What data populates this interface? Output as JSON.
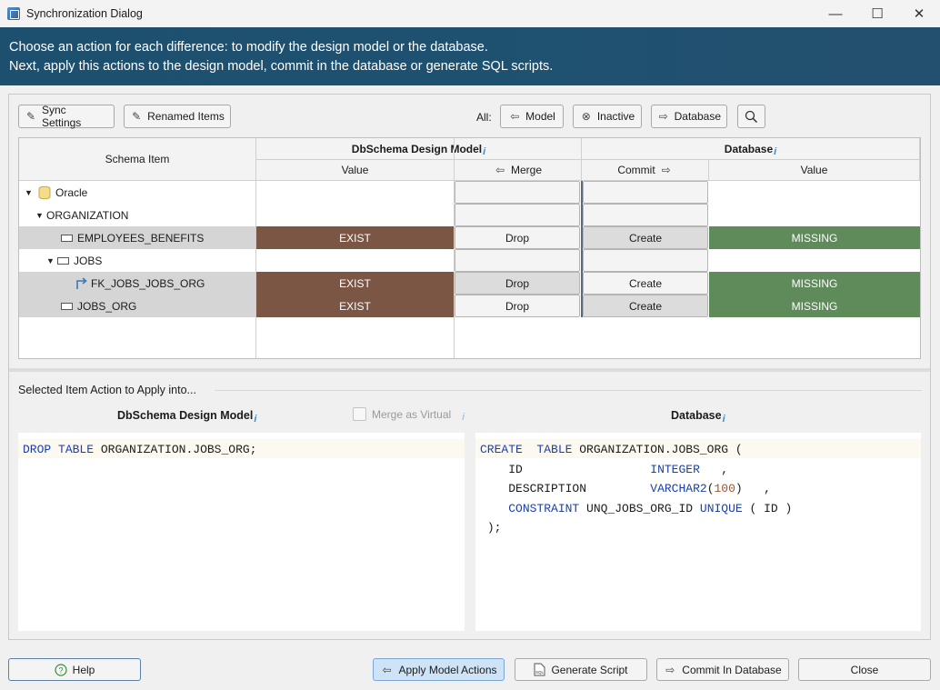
{
  "window": {
    "title": "Synchronization Dialog",
    "minimize_glyph": "—",
    "maximize_glyph": "☐",
    "close_glyph": "✕"
  },
  "banner": {
    "line1": "Choose an action for each difference: to modify the design model or the database.",
    "line2": "Next, apply this actions to the design model, commit in the database or generate SQL scripts."
  },
  "toolbar": {
    "sync_settings": "Sync Settings",
    "renamed_items": "Renamed Items",
    "all_label": "All:",
    "model": "Model",
    "inactive": "Inactive",
    "database": "Database"
  },
  "grid": {
    "headers": {
      "schema_item": "Schema Item",
      "design_model": "DbSchema Design Model",
      "database": "Database",
      "value_left": "Value",
      "merge": "Merge",
      "commit": "Commit",
      "value_right": "Value"
    },
    "rows": [
      {
        "name": "Oracle",
        "left_value": "",
        "merge": "",
        "commit": "",
        "right_value": ""
      },
      {
        "name": "ORGANIZATION",
        "left_value": "",
        "merge": "",
        "commit": "",
        "right_value": ""
      },
      {
        "name": "EMPLOYEES_BENEFITS",
        "left_value": "EXIST",
        "merge": "Drop",
        "commit": "Create",
        "right_value": "MISSING"
      },
      {
        "name": "JOBS",
        "left_value": "",
        "merge": "",
        "commit": "",
        "right_value": ""
      },
      {
        "name": "FK_JOBS_JOBS_ORG",
        "left_value": "EXIST",
        "merge": "Drop",
        "commit": "Create",
        "right_value": "MISSING"
      },
      {
        "name": "JOBS_ORG",
        "left_value": "EXIST",
        "merge": "Drop",
        "commit": "Create",
        "right_value": "MISSING"
      }
    ]
  },
  "details": {
    "title": "Selected Item Action to Apply into...",
    "left_header": "DbSchema Design Model",
    "merge_virtual": "Merge as Virtual",
    "right_header": "Database",
    "left_sql": {
      "kw1": "DROP",
      "kw2": "TABLE",
      "rest": " ORGANIZATION.JOBS_ORG;"
    },
    "right_sql": {
      "l1_kw1": "CREATE",
      "l1_kw2": "TABLE",
      "l1_rest": " ORGANIZATION.JOBS_ORG (",
      "l2_col": "ID",
      "l2_type": "INTEGER",
      "l2_tail": ",",
      "l3_col": "DESCRIPTION",
      "l3_type": "VARCHAR2",
      "l3_open": "(",
      "l3_num": "100",
      "l3_close": ")",
      "l3_tail": ",",
      "l4_kw": "CONSTRAINT",
      "l4_name": "UNQ_JOBS_ORG_ID",
      "l4_kw2": "UNIQUE",
      "l4_rest": "( ID )",
      "l5": ");"
    }
  },
  "footer": {
    "help": "Help",
    "apply_model": "Apply Model Actions",
    "generate_script": "Generate Script",
    "commit_db": "Commit In Database",
    "close": "Close"
  }
}
